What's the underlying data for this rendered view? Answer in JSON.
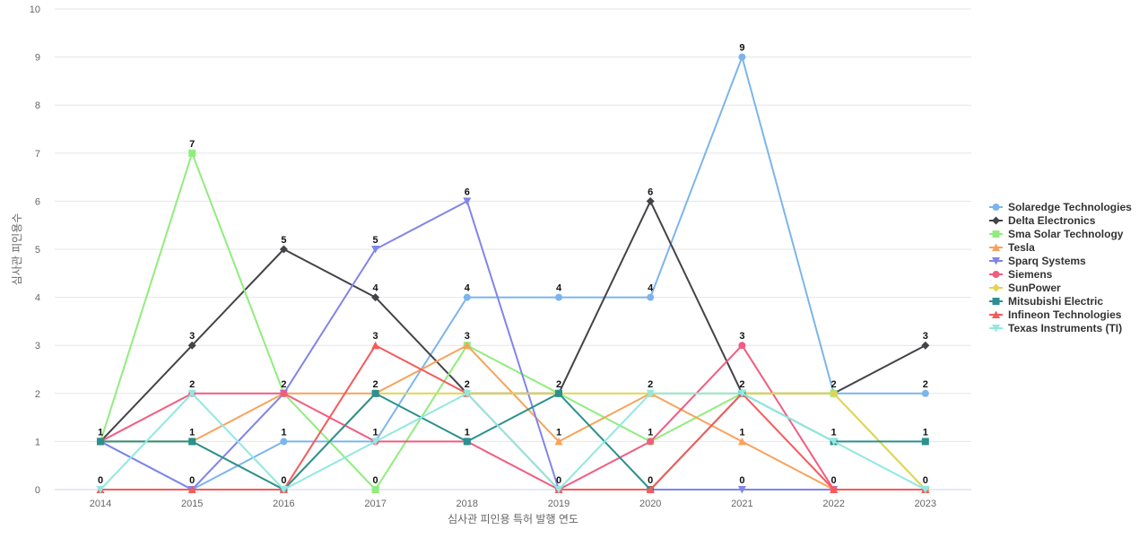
{
  "chart_data": {
    "type": "line",
    "title": "",
    "xlabel": "심사관 피인용 특허 발행 연도",
    "ylabel": "심사관 피인용수",
    "x": [
      "2014",
      "2015",
      "2016",
      "2017",
      "2018",
      "2019",
      "2020",
      "2021",
      "2022",
      "2023"
    ],
    "ylim": [
      0,
      10
    ],
    "yticks": [
      0,
      1,
      2,
      3,
      4,
      5,
      6,
      7,
      8,
      9,
      10
    ],
    "grid": true,
    "legend_position": "right",
    "series": [
      {
        "name": "Solaredge Technologies",
        "color": "#7cb5ec",
        "marker": "circle",
        "values": [
          1,
          0,
          1,
          1,
          4,
          4,
          4,
          9,
          2,
          2
        ]
      },
      {
        "name": "Delta Electronics",
        "color": "#434348",
        "marker": "diamond",
        "values": [
          1,
          3,
          5,
          4,
          2,
          2,
          6,
          2,
          2,
          3
        ]
      },
      {
        "name": "Sma Solar Technology",
        "color": "#90ed7d",
        "marker": "square",
        "values": [
          1,
          7,
          2,
          0,
          3,
          2,
          1,
          2,
          2,
          0
        ]
      },
      {
        "name": "Tesla",
        "color": "#f7a35c",
        "marker": "triangle",
        "values": [
          1,
          1,
          2,
          2,
          3,
          1,
          2,
          1,
          0,
          0
        ]
      },
      {
        "name": "Sparq Systems",
        "color": "#8085e9",
        "marker": "triangle-down",
        "values": [
          1,
          0,
          2,
          5,
          6,
          0,
          0,
          0,
          0,
          0
        ]
      },
      {
        "name": "Siemens",
        "color": "#f15c80",
        "marker": "circle",
        "values": [
          1,
          2,
          2,
          1,
          1,
          0,
          1,
          3,
          0,
          0
        ]
      },
      {
        "name": "SunPower",
        "color": "#e4d354",
        "marker": "diamond",
        "values": [
          1,
          1,
          0,
          2,
          2,
          2,
          2,
          2,
          2,
          0
        ]
      },
      {
        "name": "Mitsubishi Electric",
        "color": "#2b908f",
        "marker": "square",
        "values": [
          1,
          1,
          0,
          2,
          1,
          2,
          0,
          2,
          1,
          1
        ]
      },
      {
        "name": "Infineon Technologies",
        "color": "#f45b5b",
        "marker": "triangle",
        "values": [
          0,
          0,
          0,
          3,
          2,
          0,
          0,
          2,
          0,
          0
        ]
      },
      {
        "name": "Texas Instruments (TI)",
        "color": "#91e8e1",
        "marker": "triangle-down",
        "values": [
          0,
          2,
          0,
          1,
          2,
          0,
          2,
          2,
          1,
          0
        ]
      }
    ],
    "data_labels": [
      {
        "x": "2014",
        "top": "1",
        "bottom": "0"
      },
      {
        "x": "2015",
        "top": "7",
        "mid": "3",
        "low": "2",
        "lower": "1",
        "bottom": "0"
      },
      {
        "x": "2016",
        "top": "5",
        "low": "2",
        "lower": "1",
        "bottom": "0"
      },
      {
        "x": "2017",
        "top": "5",
        "mid": "4",
        "mid2": "3",
        "low": "2",
        "lower": "1",
        "bottom": "0"
      },
      {
        "x": "2018",
        "top": "6",
        "mid": "4",
        "mid2": "3",
        "low": "2",
        "lower": "1"
      },
      {
        "x": "2019",
        "top": "4",
        "low": "2",
        "lower": "1",
        "bottom": "0"
      },
      {
        "x": "2020",
        "top": "6",
        "mid": "4",
        "low": "2",
        "lower": "1",
        "bottom": "0"
      },
      {
        "x": "2021",
        "top": "9",
        "mid2": "3",
        "low": "2",
        "lower": "1",
        "bottom": "0"
      },
      {
        "x": "2022",
        "low": "2",
        "lower": "1",
        "bottom": "0"
      },
      {
        "x": "2023",
        "mid2": "3",
        "low": "2",
        "lower": "1",
        "bottom": "0"
      }
    ]
  }
}
